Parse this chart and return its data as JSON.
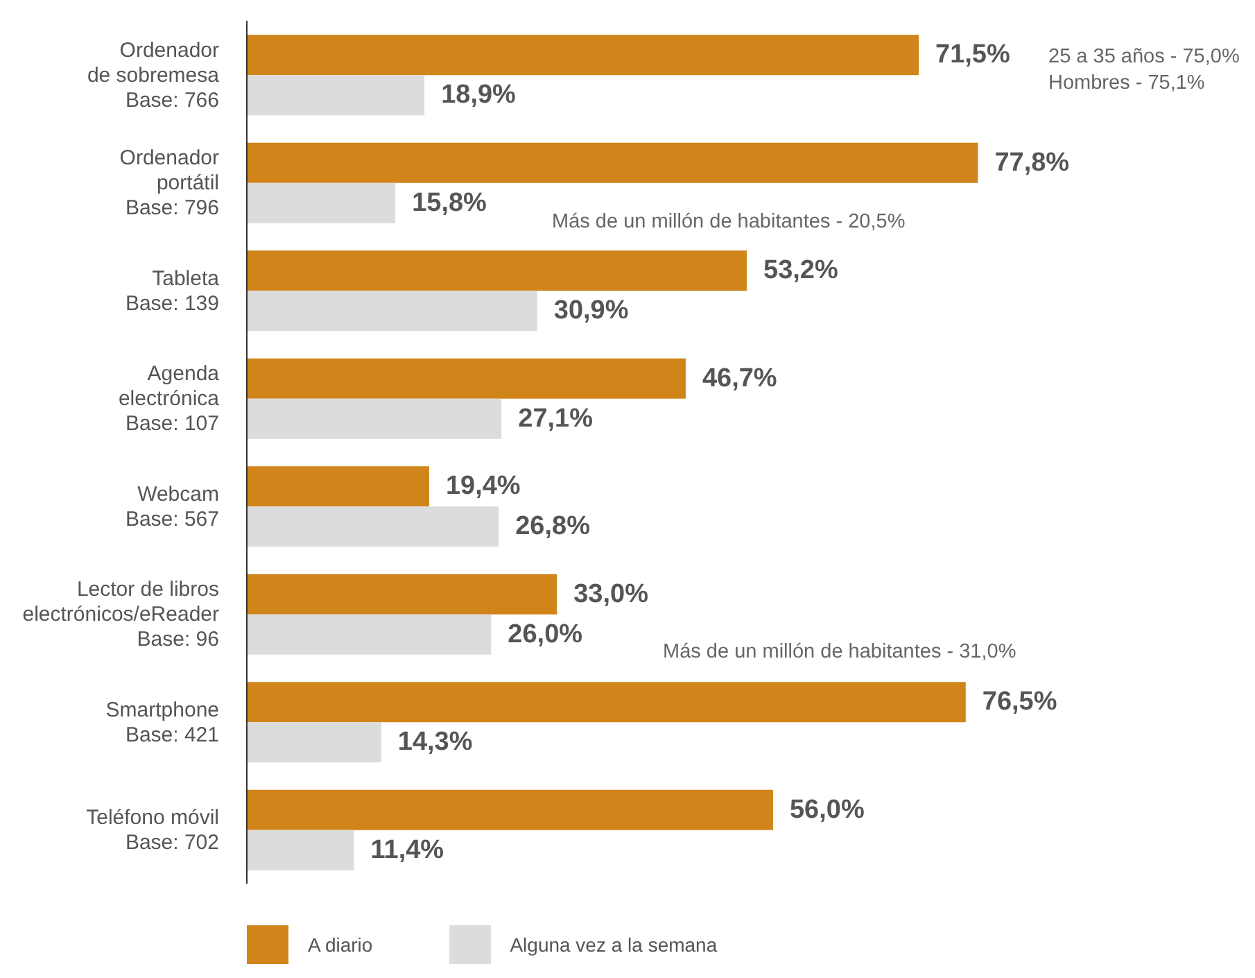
{
  "chart_data": {
    "type": "bar",
    "orientation": "horizontal",
    "categories": [
      "Ordenador\nde sobremesa\nBase: 766",
      "Ordenador\nportátil\nBase: 796",
      "Tableta\nBase: 139",
      "Agenda\nelectrónica\nBase: 107",
      "Webcam\nBase: 567",
      "Lector de libros\nelectrónicos/eReader\nBase: 96",
      "Smartphone\nBase: 421",
      "Teléfono móvil\nBase: 702"
    ],
    "series": [
      {
        "name": "A diario",
        "color": "#d0841a",
        "values": [
          71.5,
          77.8,
          53.2,
          46.7,
          19.4,
          33.0,
          76.5,
          56.0
        ],
        "value_labels": [
          "71,5%",
          "77,8%",
          "53,2%",
          "46,7%",
          "19,4%",
          "33,0%",
          "76,5%",
          "56,0%"
        ]
      },
      {
        "name": "Alguna vez a la semana",
        "color": "#dcdcdd",
        "values": [
          18.9,
          15.8,
          30.9,
          27.1,
          26.8,
          26.0,
          14.3,
          11.4
        ],
        "value_labels": [
          "18,9%",
          "15,8%",
          "30,9%",
          "27,1%",
          "26,8%",
          "26,0%",
          "14,3%",
          "11,4%"
        ]
      }
    ],
    "annotations": [
      "25 a 35 años  - 75,0%",
      "Hombres - 75,1%",
      "Más de un millón de habitantes - 20,5%",
      "Más de un millón de habitantes - 31,0%"
    ],
    "legend": "bottom left"
  }
}
